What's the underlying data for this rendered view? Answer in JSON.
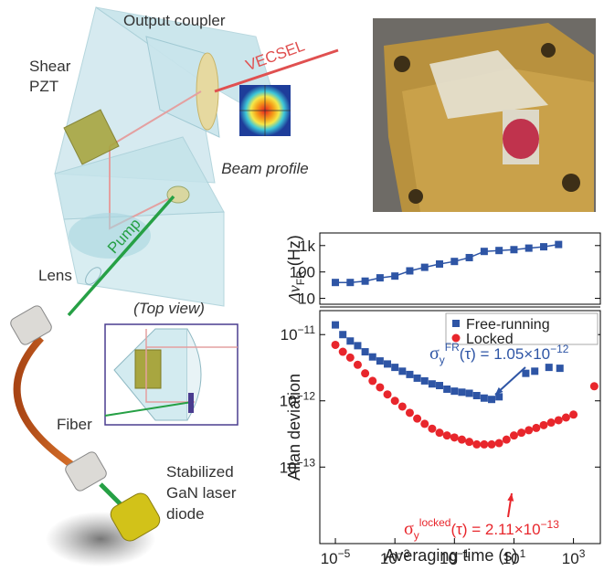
{
  "diagram": {
    "labels": {
      "output_coupler": "Output coupler",
      "vecsel": "VECSEL",
      "shear_pzt": [
        "Shear",
        "PZT"
      ],
      "beam_profile": "Beam profile",
      "lens": "Lens",
      "pump": "Pump",
      "top_view": "(Top view)",
      "fiber": "Fiber",
      "diode": [
        "Stabilized",
        "GaN laser",
        "diode"
      ]
    }
  },
  "chart_data": [
    {
      "type": "line",
      "log_x": true,
      "log_y": true,
      "y_label": {
        "text": "Δν",
        "sub": "FR",
        "rest": " (Hz)"
      },
      "x": [
        1e-05,
        3.16e-05,
        0.0001,
        0.000316,
        0.001,
        0.00316,
        0.01,
        0.0316,
        0.1,
        0.316,
        1,
        3.16,
        10,
        31.6,
        100,
        316
      ],
      "values": [
        40,
        40,
        45,
        60,
        70,
        110,
        150,
        200,
        250,
        350,
        600,
        650,
        700,
        800,
        900,
        1100
      ],
      "color": "#2e55a5",
      "xlim": [
        3e-06,
        8000
      ],
      "ylim": [
        6,
        3000
      ],
      "yticks": [
        10,
        100,
        {
          "value": 1000,
          "label": "1k"
        }
      ]
    },
    {
      "type": "scatter",
      "log_x": true,
      "log_y": true,
      "power_labels": true,
      "x_label": "Averaging time (s)",
      "y_label": "Allan deviation",
      "legend": "top-right",
      "series": [
        {
          "name": "Free-running",
          "color": "#2e55a5",
          "marker": "square",
          "x": [
            1e-05,
            1.78e-05,
            3.16e-05,
            5.62e-05,
            0.0001,
            0.000178,
            0.000316,
            0.000562,
            0.001,
            0.00178,
            0.00316,
            0.00562,
            0.01,
            0.0178,
            0.0316,
            0.0562,
            0.1,
            0.178,
            0.316,
            0.562,
            1,
            1.78,
            3.16,
            25,
            50,
            150,
            350
          ],
          "values": [
            1.4e-11,
            1e-11,
            8e-12,
            6.8e-12,
            5.5e-12,
            4.6e-12,
            4e-12,
            3.6e-12,
            3.2e-12,
            2.8e-12,
            2.5e-12,
            2.2e-12,
            2e-12,
            1.8e-12,
            1.7e-12,
            1.5e-12,
            1.4e-12,
            1.35e-12,
            1.3e-12,
            1.2e-12,
            1.1e-12,
            1.05e-12,
            1.15e-12,
            2.6e-12,
            2.8e-12,
            3.2e-12,
            3.1e-12
          ]
        },
        {
          "name": "Locked",
          "color": "#e8262c",
          "marker": "circle",
          "x": [
            1e-05,
            1.78e-05,
            3.16e-05,
            5.62e-05,
            0.0001,
            0.000178,
            0.000316,
            0.000562,
            0.001,
            0.00178,
            0.00316,
            0.00562,
            0.01,
            0.0178,
            0.0316,
            0.0562,
            0.1,
            0.178,
            0.316,
            0.562,
            1,
            1.78,
            3.16,
            5.62,
            10,
            17.8,
            31.6,
            56.2,
            100,
            178,
            316,
            562,
            1000,
            5000
          ],
          "values": [
            7e-12,
            5.5e-12,
            4.5e-12,
            3.5e-12,
            2.6e-12,
            2e-12,
            1.6e-12,
            1.25e-12,
            1e-12,
            8.2e-13,
            6.6e-13,
            5.4e-13,
            4.5e-13,
            3.8e-13,
            3.3e-13,
            3e-13,
            2.8e-13,
            2.6e-13,
            2.4e-13,
            2.2e-13,
            2.2e-13,
            2.2e-13,
            2.3e-13,
            2.6e-13,
            3e-13,
            3.3e-13,
            3.6e-13,
            3.9e-13,
            4.3e-13,
            4.7e-13,
            5.1e-13,
            5.6e-13,
            6.2e-13,
            1.66e-12
          ]
        }
      ],
      "annotations": [
        {
          "symbol": "σ",
          "sub": "y",
          "sup": "FR",
          "text": "(τ) = 1.05×10",
          "exp": "−12",
          "color": "#2e55a5"
        },
        {
          "symbol": "σ",
          "sub": "y",
          "sup": "locked",
          "text": "(τ) = 2.11×10",
          "exp": "−13",
          "color": "#e8262c"
        }
      ],
      "xlim": [
        3e-06,
        8000
      ],
      "ylim": [
        7e-15,
        2.3e-11
      ],
      "xticks": [
        {
          "value": 1e-05,
          "label": "10−5"
        },
        {
          "value": 0.001,
          "label": "10−3"
        },
        {
          "value": 0.1,
          "label": "10−1"
        },
        {
          "value": 10,
          "label": "101"
        },
        {
          "value": 1000,
          "label": "103"
        }
      ],
      "yticks": [
        {
          "value": 1e-13,
          "label": "10−13"
        },
        {
          "value": 1e-12,
          "label": "10−12"
        },
        {
          "value": 1e-11,
          "label": "10−11"
        }
      ]
    }
  ]
}
